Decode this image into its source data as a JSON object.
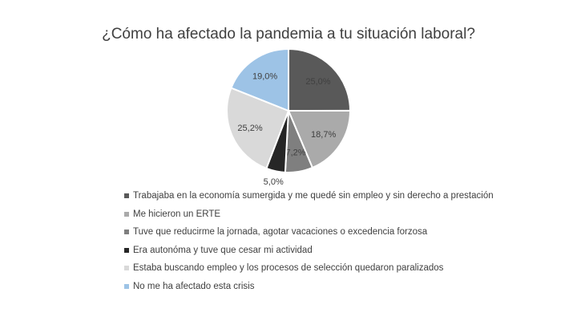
{
  "chart_data": {
    "type": "pie",
    "title": "¿Cómo ha afectado la pandemia a tu situación laboral?",
    "slices": [
      {
        "label": "Trabajaba en la economía sumergida y me quedé sin empleo y sin derecho a prestación",
        "value": 25.0,
        "display": "25,0%",
        "color": "#595959",
        "label_color": "#404040"
      },
      {
        "label": "Me hicieron un ERTE",
        "value": 18.7,
        "display": "18,7%",
        "color": "#aaaaaa",
        "label_color": "#404040"
      },
      {
        "label": "Tuve que reducirme la jornada, agotar vacaciones o excedencia forzosa",
        "value": 7.2,
        "display": "7,2%",
        "color": "#7f7f7f",
        "label_color": "#404040"
      },
      {
        "label": "Era autonóma y tuve que cesar mi actividad",
        "value": 5.0,
        "display": "5,0%",
        "color": "#262626",
        "label_color": "#404040"
      },
      {
        "label": "Estaba buscando empleo y los procesos de selección quedaron paralizados",
        "value": 25.2,
        "display": "25,2%",
        "color": "#d9d9d9",
        "label_color": "#404040"
      },
      {
        "label": "No me ha afectado esta crisis",
        "value": 19.0,
        "display": "19,0%",
        "color": "#9dc3e6",
        "label_color": "#404040"
      }
    ],
    "legend_position": "bottom"
  }
}
